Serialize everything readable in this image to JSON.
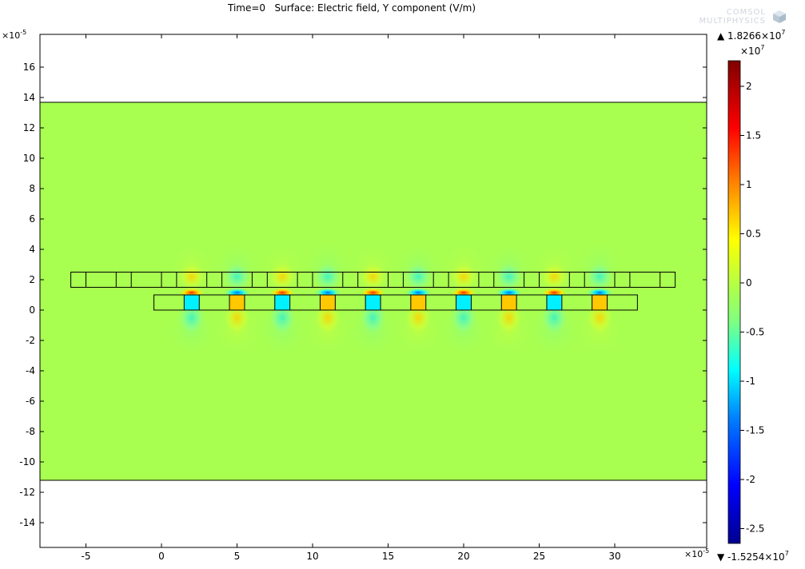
{
  "title": "Time=0   Surface: Electric field, Y component (V/m)",
  "logo": {
    "line1": "COMSOL",
    "line2": "MULTIPHYSICS",
    "icon": "comsol-cube-icon"
  },
  "axes": {
    "y_multiplier": "×10",
    "y_multiplier_exp": "-5",
    "x_multiplier": "×10",
    "x_multiplier_exp": "-5",
    "x_ticks": [
      "-5",
      "0",
      "5",
      "10",
      "15",
      "20",
      "25",
      "30"
    ],
    "y_ticks": [
      "16",
      "14",
      "12",
      "10",
      "8",
      "6",
      "4",
      "2",
      "0",
      "-2",
      "-4",
      "-6",
      "-8",
      "-10",
      "-12",
      "-14"
    ]
  },
  "colorbar": {
    "max_label": "▲ 1.8266×10",
    "max_exp": "7",
    "min_label": "▼ -1.5254×10",
    "min_exp": "7",
    "multiplier": "×10",
    "multiplier_exp": "7",
    "ticks": [
      "2",
      "1.5",
      "1",
      "0.5",
      "0",
      "-0.5",
      "-1",
      "-1.5",
      "-2",
      "-2.5"
    ]
  },
  "colors": {
    "background_field": "#a8ff50",
    "positive_peak": "#ff2000",
    "negative_peak": "#00e8ff"
  }
}
